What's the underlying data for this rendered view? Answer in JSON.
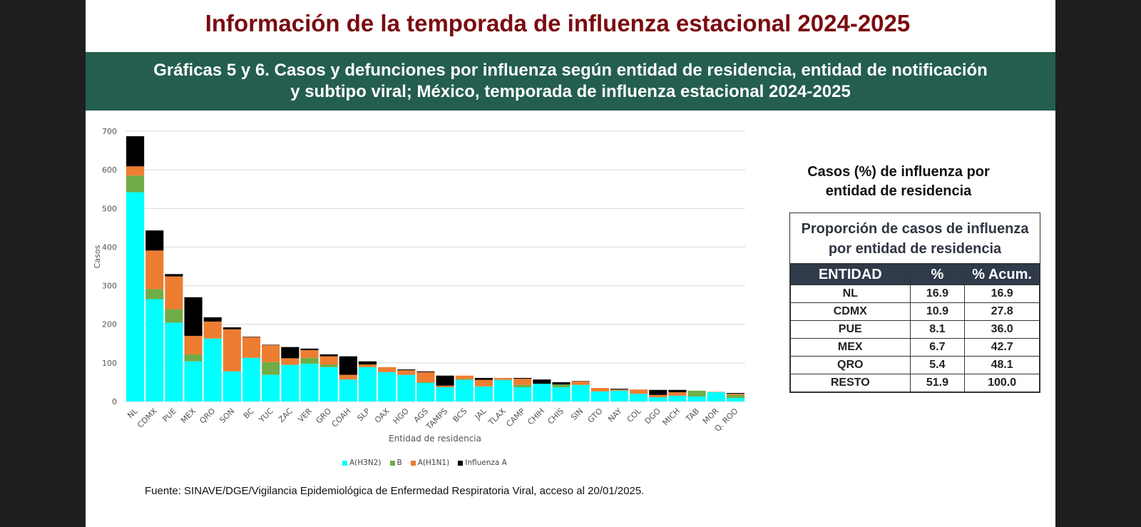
{
  "page": {
    "title": "Información de la temporada de influenza estacional 2024-2025",
    "banner_line1": "Gráficas 5 y 6. Casos y defunciones  por influenza según entidad de residencia, entidad de notificación",
    "banner_line2": "y subtipo viral; México, temporada de influenza estacional 2024-2025",
    "source": "Fuente: SINAVE/DGE/Vigilancia Epidemiológica de Enfermedad Respiratoria Viral, acceso al 20/01/2025."
  },
  "colors": {
    "title": "#7a0b10",
    "banner": "#245e4f",
    "table_header": "#2f3a4a",
    "A(H3N2)": "#00ffff",
    "B": "#70ad47",
    "A(H1N1)": "#ed7d31",
    "Influenza A": "#000000"
  },
  "side": {
    "title_line1": "Casos (%) de influenza por",
    "title_line2": "entidad de residencia",
    "table_caption": "Proporción de casos de influenza por entidad de residencia",
    "headers": [
      "ENTIDAD",
      "%",
      "% Acum."
    ],
    "rows": [
      [
        "NL",
        "16.9",
        "16.9"
      ],
      [
        "CDMX",
        "10.9",
        "27.8"
      ],
      [
        "PUE",
        "8.1",
        "36.0"
      ],
      [
        "MEX",
        "6.7",
        "42.7"
      ],
      [
        "QRO",
        "5.4",
        "48.1"
      ],
      [
        "RESTO",
        "51.9",
        "100.0"
      ]
    ]
  },
  "chart_data": {
    "type": "bar",
    "stacked": true,
    "title": "",
    "xlabel": "Entidad de residencia",
    "ylabel": "Casos",
    "ylim": [
      0,
      700
    ],
    "yticks": [
      0,
      100,
      200,
      300,
      400,
      500,
      600,
      700
    ],
    "grid": true,
    "legend_position": "bottom",
    "categories": [
      "NL",
      "CDMX",
      "PUE",
      "MEX",
      "QRO",
      "SON",
      "BC",
      "YUC",
      "ZAC",
      "VER",
      "GRO",
      "COAH",
      "SLP",
      "OAX",
      "HGO",
      "AGS",
      "TAMPS",
      "BCS",
      "JAL",
      "TLAX",
      "CAMP",
      "CHIH",
      "CHIS",
      "SIN",
      "GTO",
      "NAY",
      "COL",
      "DGO",
      "MICH",
      "TAB",
      "MOR",
      "Q. ROO"
    ],
    "series": [
      {
        "name": "A(H3N2)",
        "values": [
          542,
          265,
          204,
          104,
          163,
          78,
          113,
          69,
          95,
          98,
          89,
          57,
          89,
          76,
          69,
          48,
          37,
          56,
          39,
          56,
          37,
          46,
          37,
          43,
          26,
          28,
          20,
          11,
          15,
          13,
          24,
          9
        ]
      },
      {
        "name": "B",
        "values": [
          43,
          26,
          35,
          18,
          0,
          0,
          0,
          33,
          0,
          15,
          7,
          0,
          0,
          0,
          0,
          2,
          0,
          2,
          0,
          0,
          6,
          0,
          7,
          0,
          0,
          0,
          0,
          0,
          0,
          15,
          0,
          8
        ]
      },
      {
        "name": "A(H1N1)",
        "values": [
          24,
          100,
          85,
          48,
          44,
          109,
          54,
          44,
          17,
          20,
          21,
          12,
          7,
          13,
          12,
          26,
          4,
          9,
          17,
          5,
          16,
          0,
          0,
          9,
          9,
          3,
          11,
          6,
          9,
          0,
          1,
          3
        ]
      },
      {
        "name": "Influenza A",
        "values": [
          78,
          52,
          6,
          100,
          11,
          5,
          1,
          1,
          29,
          4,
          5,
          48,
          8,
          0,
          2,
          2,
          26,
          0,
          5,
          0,
          2,
          11,
          6,
          1,
          0,
          2,
          0,
          13,
          6,
          0,
          0,
          2
        ]
      }
    ]
  }
}
